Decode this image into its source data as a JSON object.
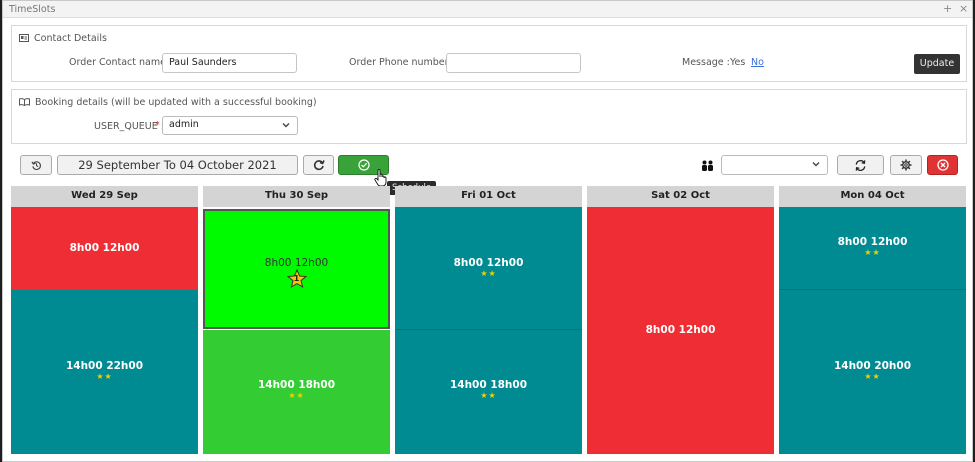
{
  "window": {
    "title": "TimeSlots",
    "plus": "+",
    "close": "×"
  },
  "contact": {
    "heading": "Contact Details",
    "order_contact_label": "Order Contact name :",
    "order_contact_value": "Paul Saunders",
    "order_phone_label": "Order Phone number :",
    "order_phone_value": "",
    "message_label": "Message :",
    "message_yes": "Yes",
    "message_no": "No",
    "update_label": "Update"
  },
  "booking": {
    "heading": "Booking details (will be updated with a successful booking)",
    "queue_label": "USER_QUEUE :",
    "queue_required": "*",
    "queue_value": "admin"
  },
  "toolbar": {
    "date_range": "29 September To 04 October 2021",
    "schedule_tooltip": "Schedule",
    "resource_select_value": ""
  },
  "days": [
    {
      "header": "Wed 29 Sep",
      "slots": [
        {
          "time": "8h00 12h00",
          "stars": ""
        },
        {
          "time": "14h00 22h00",
          "stars": "★★"
        }
      ]
    },
    {
      "header": "Thu 30 Sep",
      "slots": [
        {
          "time": "8h00 12h00",
          "badge": "1"
        },
        {
          "time": "14h00 18h00",
          "stars": "★★"
        }
      ]
    },
    {
      "header": "Fri 01 Oct",
      "slots": [
        {
          "time": "8h00 12h00",
          "stars": "★★"
        },
        {
          "time": "14h00 18h00",
          "stars": "★★"
        }
      ]
    },
    {
      "header": "Sat 02 Oct",
      "slots": [
        {
          "time": "8h00 12h00",
          "stars": ""
        }
      ]
    },
    {
      "header": "Mon 04 Oct",
      "slots": [
        {
          "time": "8h00 12h00",
          "stars": "★★"
        },
        {
          "time": "14h00 20h00",
          "stars": "★★"
        }
      ]
    }
  ],
  "colors": {
    "available": "#008b93",
    "unavailable": "#ee2e34",
    "selected": "#00fb00",
    "booked": "#33cc33"
  }
}
